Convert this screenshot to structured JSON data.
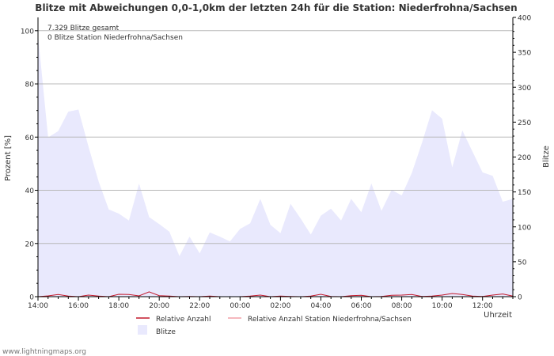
{
  "chart_data": {
    "type": "area",
    "title": "Blitze mit Abweichungen 0,0-1,0km der letzten 24h für die Station: Niederfrohna/Sachsen",
    "ylabel_left": "Prozent   [%]",
    "ylabel_right": "Blitze",
    "xlabel": "Uhrzeit",
    "ylim_left": [
      0,
      105
    ],
    "ylim_right": [
      0,
      400
    ],
    "left_ticks": [
      0,
      20,
      40,
      60,
      80,
      100
    ],
    "right_ticks": [
      0,
      50,
      100,
      150,
      200,
      250,
      300,
      350,
      400
    ],
    "x_ticks": [
      "14:00",
      "16:00",
      "18:00",
      "20:00",
      "22:00",
      "00:00",
      "02:00",
      "04:00",
      "06:00",
      "08:00",
      "10:00",
      "12:00"
    ],
    "annotations": [
      "7.329 Blitze gesamt",
      "0 Blitze Station Niederfrohna/Sachsen"
    ],
    "legend": [
      "Relative Anzahl",
      "Relative Anzahl Station Niederfrohna/Sachsen",
      "Blitze"
    ],
    "series": [
      {
        "name": "Blitze",
        "axis": "right",
        "x_hours": [
          0,
          0.5,
          1,
          1.5,
          2,
          2.5,
          3,
          3.5,
          4,
          4.5,
          5,
          5.5,
          6,
          6.5,
          7,
          7.5,
          8,
          8.5,
          9,
          9.5,
          10,
          10.5,
          11,
          11.5,
          12,
          12.5,
          13,
          13.5,
          14,
          14.5,
          15,
          15.5,
          16,
          16.5,
          17,
          17.5,
          18,
          18.5,
          19,
          19.5,
          20,
          20.5,
          21,
          21.5,
          22,
          22.5,
          23,
          23.5
        ],
        "values": [
          375,
          228,
          237,
          265,
          268,
          215,
          165,
          125,
          119,
          109,
          162,
          114,
          104,
          93,
          58,
          86,
          62,
          92,
          86,
          79,
          97,
          105,
          140,
          103,
          91,
          133,
          112,
          89,
          116,
          126,
          109,
          140,
          121,
          162,
          123,
          153,
          145,
          177,
          220,
          267,
          255,
          185,
          238,
          208,
          178,
          173,
          136,
          140
        ]
      },
      {
        "name": "Relative Anzahl",
        "axis": "left",
        "x_hours": [
          0,
          0.5,
          1,
          1.5,
          2,
          2.5,
          3,
          3.5,
          4,
          4.5,
          5,
          5.5,
          6,
          6.5,
          7,
          7.5,
          8,
          8.5,
          9,
          9.5,
          10,
          10.5,
          11,
          11.5,
          12,
          12.5,
          13,
          13.5,
          14,
          14.5,
          15,
          15.5,
          16,
          16.5,
          17,
          17.5,
          18,
          18.5,
          19,
          19.5,
          20,
          20.5,
          21,
          21.5,
          22,
          22.5,
          23,
          23.5
        ],
        "values": [
          0,
          0.3,
          0.8,
          0.2,
          0,
          0.6,
          0.2,
          0,
          0.9,
          0.8,
          0.3,
          1.8,
          0.4,
          0.2,
          0,
          0.1,
          0,
          0.2,
          0,
          0,
          0,
          0.2,
          0.6,
          0,
          0.2,
          0.1,
          0,
          0.2,
          0.9,
          0.1,
          0,
          0.4,
          0.5,
          0,
          0.1,
          0.5,
          0.6,
          0.8,
          0.1,
          0.2,
          0.6,
          1.2,
          0.8,
          0.2,
          0.1,
          0.6,
          1.0,
          0.2
        ]
      },
      {
        "name": "Relative Anzahl Station Niederfrohna/Sachsen",
        "axis": "left",
        "x_hours": [
          0,
          23.5
        ],
        "values": [
          0,
          0
        ]
      }
    ]
  },
  "footer": {
    "watermark": "www.lightningmaps.org"
  },
  "colors": {
    "area_fill": "#e9e9fd",
    "relative_line": "#c2192b",
    "station_line": "#f2a0a8",
    "grid": "#b8b8b8",
    "axis": "#000000",
    "text": "#333333",
    "watermark": "#777777"
  }
}
